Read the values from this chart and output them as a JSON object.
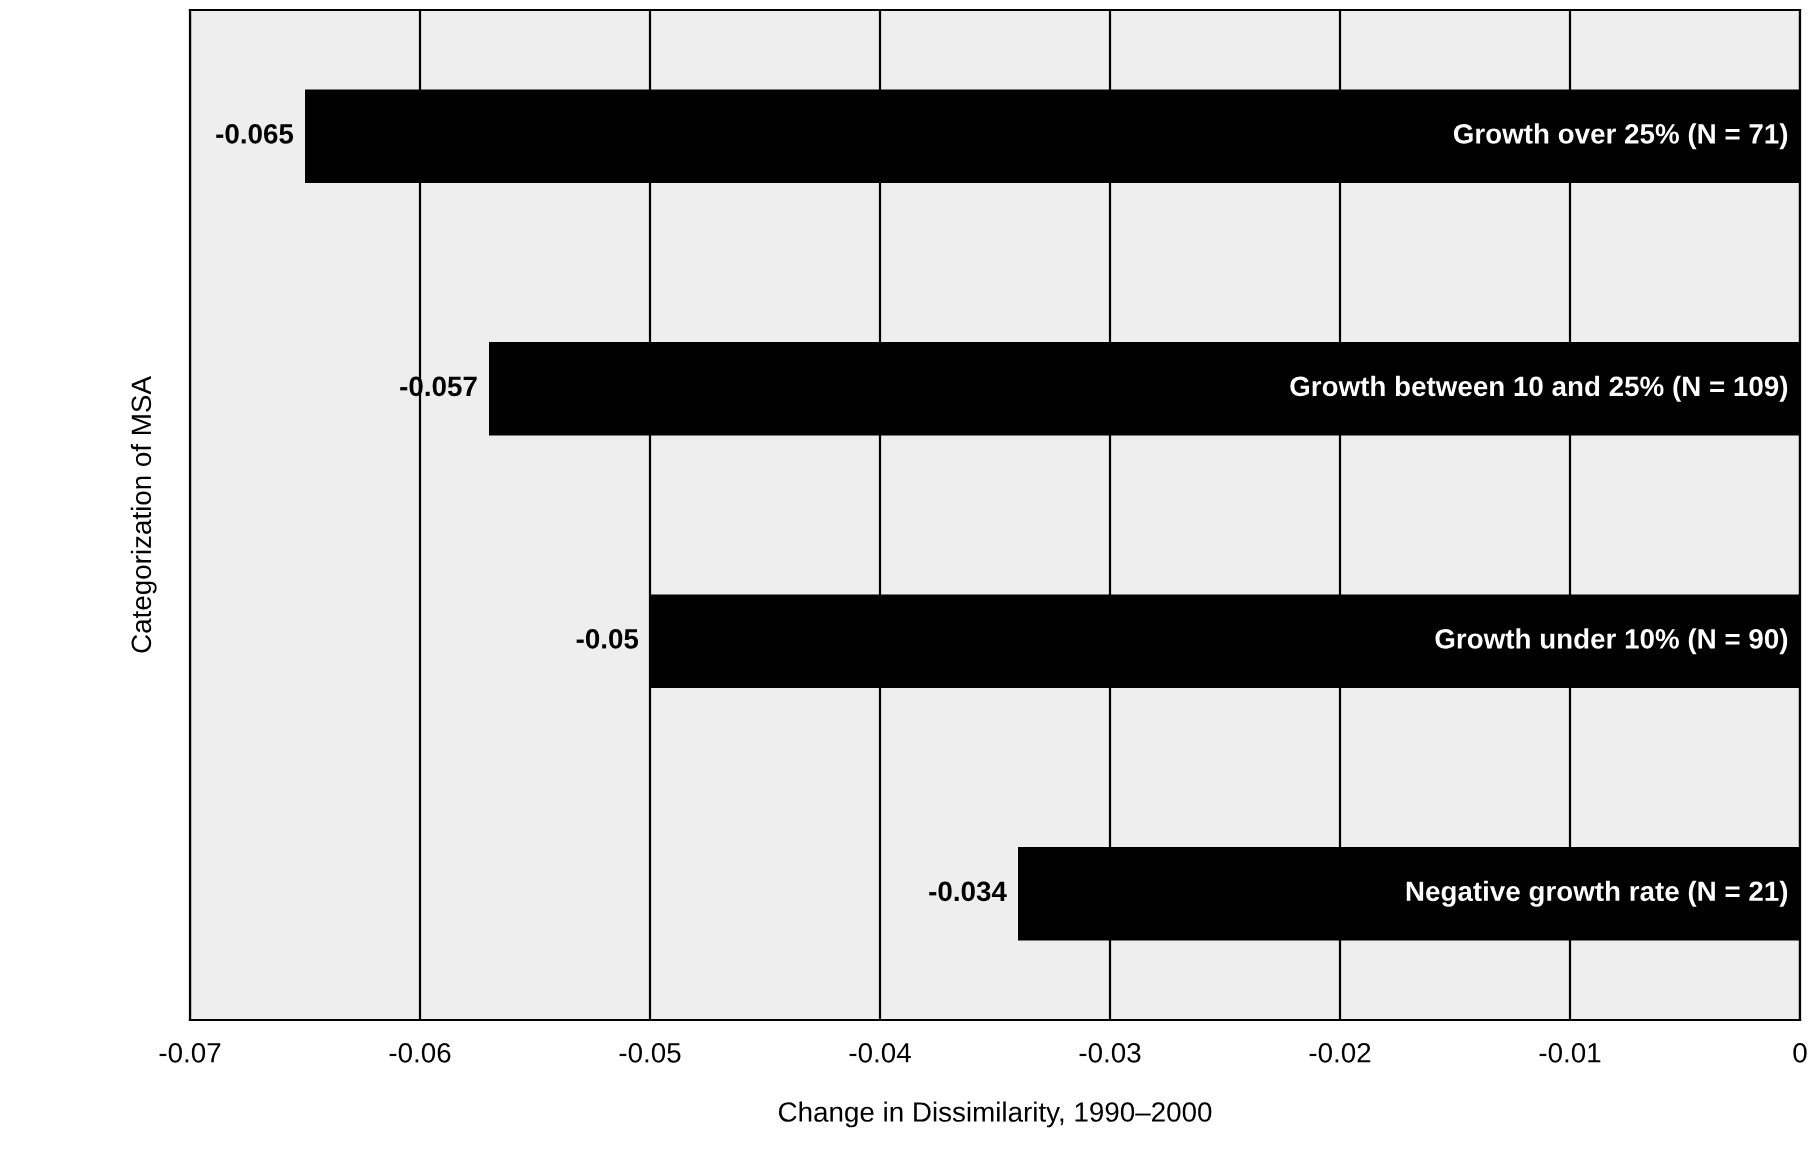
{
  "chart_data": {
    "type": "bar",
    "orientation": "horizontal",
    "xlabel": "Change in Dissimilarity, 1990–2000",
    "ylabel": "Categorization of MSA",
    "categories": [
      "Growth over 25% (N = 71)",
      "Growth between 10 and 25% (N = 109)",
      "Growth under 10% (N = 90)",
      "Negative growth rate (N = 21)"
    ],
    "values": [
      -0.065,
      -0.057,
      -0.05,
      -0.034
    ],
    "color": "#000000",
    "data_labels": true,
    "xlim": [
      -0.07,
      0
    ],
    "xticks": [
      -0.07,
      -0.06,
      -0.05,
      -0.04,
      -0.03,
      -0.02,
      -0.01,
      0
    ],
    "grid": "x"
  }
}
